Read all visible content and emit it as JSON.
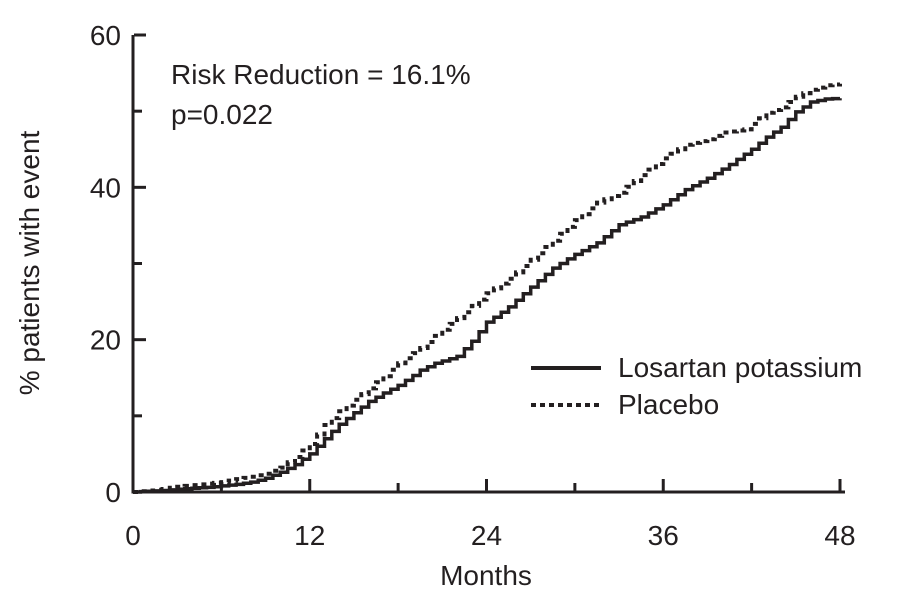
{
  "chart_data": {
    "type": "line",
    "subtype": "kaplan-meier-step",
    "xlabel": "Months",
    "ylabel": "% patients with event",
    "xlim": [
      0,
      48
    ],
    "ylim": [
      0,
      60
    ],
    "grid": false,
    "background": "#ffffff",
    "ink_color": "#231f20",
    "x_major_ticks": [
      0,
      12,
      24,
      36,
      48
    ],
    "x_tick_labels": [
      "0",
      "12",
      "24",
      "36",
      "48"
    ],
    "x_minor_ticks": [
      6,
      18,
      30,
      42
    ],
    "y_major_ticks": [
      0,
      20,
      40,
      60
    ],
    "y_tick_labels": [
      "0",
      "20",
      "40",
      "60"
    ],
    "y_minor_ticks": [
      10,
      30,
      50
    ],
    "annotation": {
      "line1": "Risk Reduction = 16.1%",
      "line2": "p=0.022"
    },
    "legend": [
      {
        "name": "Losartan potassium",
        "style": "solid"
      },
      {
        "name": "Placebo",
        "style": "dashed"
      }
    ],
    "legend_position": "center-right",
    "series": [
      {
        "name": "Losartan potassium",
        "style": "solid",
        "points": [
          [
            0,
            0
          ],
          [
            1,
            0.1
          ],
          [
            2,
            0.2
          ],
          [
            3,
            0.35
          ],
          [
            4,
            0.5
          ],
          [
            5,
            0.6
          ],
          [
            6,
            0.8
          ],
          [
            7,
            1.0
          ],
          [
            8,
            1.3
          ],
          [
            9,
            1.8
          ],
          [
            10,
            2.6
          ],
          [
            11,
            3.6
          ],
          [
            12,
            5.0
          ],
          [
            13,
            7.0
          ],
          [
            14,
            8.9
          ],
          [
            15,
            10.4
          ],
          [
            16,
            11.9
          ],
          [
            17,
            13.0
          ],
          [
            18,
            14.0
          ],
          [
            19,
            15.3
          ],
          [
            19.5,
            16.0
          ],
          [
            20.5,
            16.9
          ],
          [
            21,
            17.2
          ],
          [
            22,
            17.8
          ],
          [
            23,
            19.8
          ],
          [
            24,
            22.3
          ],
          [
            25,
            23.6
          ],
          [
            25.5,
            24.3
          ],
          [
            27,
            26.9
          ],
          [
            28.5,
            29.4
          ],
          [
            30,
            31.2
          ],
          [
            31.5,
            32.7
          ],
          [
            33,
            35.1
          ],
          [
            34.5,
            36.1
          ],
          [
            36,
            37.7
          ],
          [
            37.5,
            39.7
          ],
          [
            39,
            41.2
          ],
          [
            40.5,
            43.0
          ],
          [
            42,
            45.0
          ],
          [
            43,
            46.6
          ],
          [
            44,
            47.9
          ],
          [
            45,
            49.9
          ],
          [
            46,
            51.2
          ],
          [
            47,
            51.6
          ],
          [
            48,
            51.7
          ]
        ]
      },
      {
        "name": "Placebo",
        "style": "dashed",
        "points": [
          [
            0,
            0
          ],
          [
            1,
            0.2
          ],
          [
            2,
            0.4
          ],
          [
            3,
            0.7
          ],
          [
            4,
            0.9
          ],
          [
            5,
            1.1
          ],
          [
            6,
            1.3
          ],
          [
            7,
            1.7
          ],
          [
            8,
            2.0
          ],
          [
            9,
            2.4
          ],
          [
            10,
            3.2
          ],
          [
            11,
            4.6
          ],
          [
            12,
            6.3
          ],
          [
            13,
            8.8
          ],
          [
            14,
            10.6
          ],
          [
            15,
            12.1
          ],
          [
            16,
            13.6
          ],
          [
            17,
            15.2
          ],
          [
            18,
            16.9
          ],
          [
            19.5,
            18.9
          ],
          [
            21,
            21.3
          ],
          [
            22.5,
            23.6
          ],
          [
            24,
            26.1
          ],
          [
            25.5,
            28.0
          ],
          [
            27,
            30.5
          ],
          [
            28.5,
            33.0
          ],
          [
            30,
            35.7
          ],
          [
            31.5,
            38.0
          ],
          [
            33,
            39.3
          ],
          [
            34.5,
            41.6
          ],
          [
            36,
            43.8
          ],
          [
            37.5,
            45.6
          ],
          [
            39,
            46.3
          ],
          [
            40,
            47.2
          ],
          [
            41.5,
            47.6
          ],
          [
            43,
            49.8
          ],
          [
            44,
            50.5
          ],
          [
            45,
            51.9
          ],
          [
            46,
            52.8
          ],
          [
            47,
            53.4
          ],
          [
            48,
            53.6
          ]
        ]
      }
    ]
  }
}
